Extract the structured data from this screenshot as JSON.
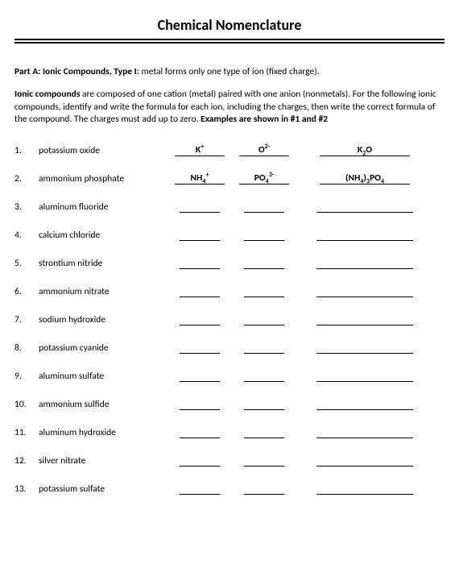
{
  "title": "Chemical Nomenclature",
  "partA": {
    "label": "Part A: Ionic Compounds, Type I:",
    "desc": "metal forms only one type of ion (fixed charge)."
  },
  "intro": {
    "lead": "Ionic compounds",
    "body1": " are composed of one cation (metal) paired with one anion (nonmetals). For the following ionic compounds, identify and write the formula for each ion, including the charges, then write the correct formula of the compound. The charges must add up to zero. ",
    "examples": "Examples are shown in #1 and #2"
  },
  "rows": [
    {
      "n": "1.",
      "name": "potassium oxide",
      "cation": "K<sup>+</sup>",
      "anion": "O<sup>2-</sup>",
      "formula": "K<sub>2</sub>O"
    },
    {
      "n": "2.",
      "name": "ammonium phosphate",
      "cation": "NH<sub>4</sub><sup>+</sup>",
      "anion": "PO<sub>4</sub><sup>3-</sup>",
      "formula": "(NH<sub>4</sub>)<sub>3</sub>PO<sub>4</sub>"
    },
    {
      "n": "3.",
      "name": "aluminum fluoride",
      "cation": "",
      "anion": "",
      "formula": ""
    },
    {
      "n": "4.",
      "name": "calcium chloride",
      "cation": "",
      "anion": "",
      "formula": ""
    },
    {
      "n": "5.",
      "name": "strontium nitride",
      "cation": "",
      "anion": "",
      "formula": ""
    },
    {
      "n": "6.",
      "name": "ammonium nitrate",
      "cation": "",
      "anion": "",
      "formula": ""
    },
    {
      "n": "7.",
      "name": "sodium hydroxide",
      "cation": "",
      "anion": "",
      "formula": ""
    },
    {
      "n": "8.",
      "name": "potassium cyanide",
      "cation": "",
      "anion": "",
      "formula": ""
    },
    {
      "n": "9.",
      "name": "aluminum sulfate",
      "cation": "",
      "anion": "",
      "formula": ""
    },
    {
      "n": "10.",
      "name": "ammonium sulfide",
      "cation": "",
      "anion": "",
      "formula": ""
    },
    {
      "n": "11.",
      "name": "aluminum hydroxide",
      "cation": "",
      "anion": "",
      "formula": ""
    },
    {
      "n": "12.",
      "name": "silver nitrate",
      "cation": "",
      "anion": "",
      "formula": ""
    },
    {
      "n": "13.",
      "name": "potassium sulfate",
      "cation": "",
      "anion": "",
      "formula": ""
    }
  ]
}
